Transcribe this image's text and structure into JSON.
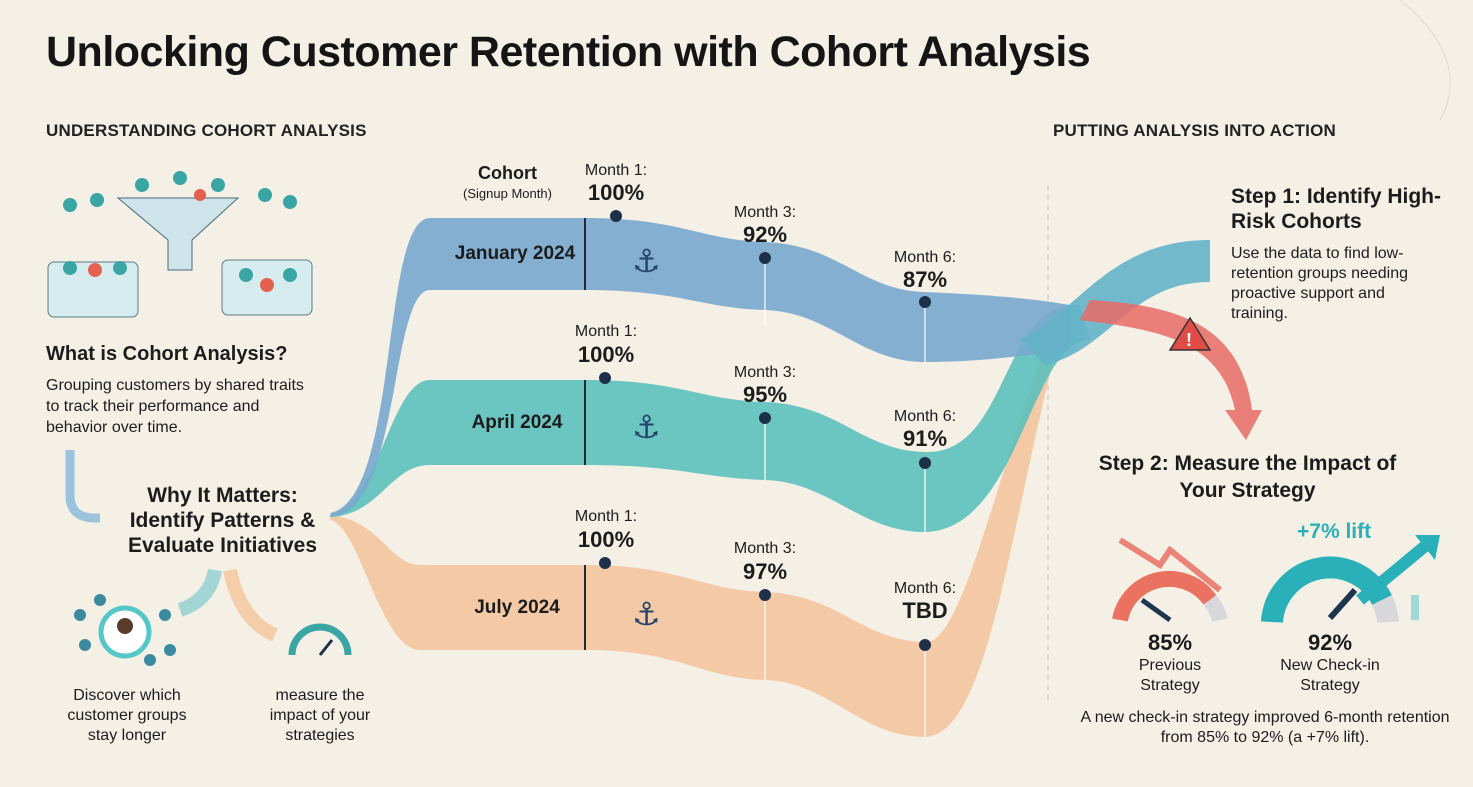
{
  "title": "Unlocking Customer Retention with Cohort Analysis",
  "left": {
    "section_title": "UNDERSTANDING COHORT ANALYSIS",
    "what_title": "What is Cohort Analysis?",
    "what_text": "Grouping customers by shared traits to track their performance and behavior over time.",
    "why_title": "Why It Matters: Identify Patterns & Evaluate Initiatives",
    "discover_text": "Discover which customer groups stay longer",
    "measure_text": "measure the impact of your strategies"
  },
  "chart": {
    "cohort_header": "Cohort",
    "cohort_subheader": "(Signup Month)",
    "cohorts": [
      {
        "name": "January 2024",
        "color": "#6fa3cc",
        "points": [
          {
            "label": "Month 1:",
            "value": "100%"
          },
          {
            "label": "Month 3:",
            "value": "92%"
          },
          {
            "label": "Month 6:",
            "value": "87%"
          }
        ]
      },
      {
        "name": "April 2024",
        "color": "#3fb3b0",
        "points": [
          {
            "label": "Month 1:",
            "value": "100%"
          },
          {
            "label": "Month 3:",
            "value": "95%"
          },
          {
            "label": "Month 6:",
            "value": "91%"
          }
        ]
      },
      {
        "name": "July 2024",
        "color": "#f0b07a",
        "points": [
          {
            "label": "Month 1:",
            "value": "100%"
          },
          {
            "label": "Month 3:",
            "value": "97%"
          },
          {
            "label": "Month 6:",
            "value": "TBD"
          }
        ]
      }
    ]
  },
  "right": {
    "section_title": "PUTTING ANALYSIS INTO ACTION",
    "step1_title": "Step 1: Identify High-Risk Cohorts",
    "step1_text": "Use the data to find low-retention groups needing proactive support and training.",
    "step2_title": "Step 2: Measure the Impact of Your Strategy",
    "lift_label": "+7% lift",
    "gauges": [
      {
        "value": "85%",
        "label": "Previous Strategy",
        "fraction": 0.85,
        "color": "#e8685a"
      },
      {
        "value": "92%",
        "label": "New Check-in Strategy",
        "fraction": 0.92,
        "color": "#2ab0b8"
      }
    ],
    "summary": "A new check-in strategy improved 6-month retention from 85% to 92% (a +7% lift)."
  }
}
